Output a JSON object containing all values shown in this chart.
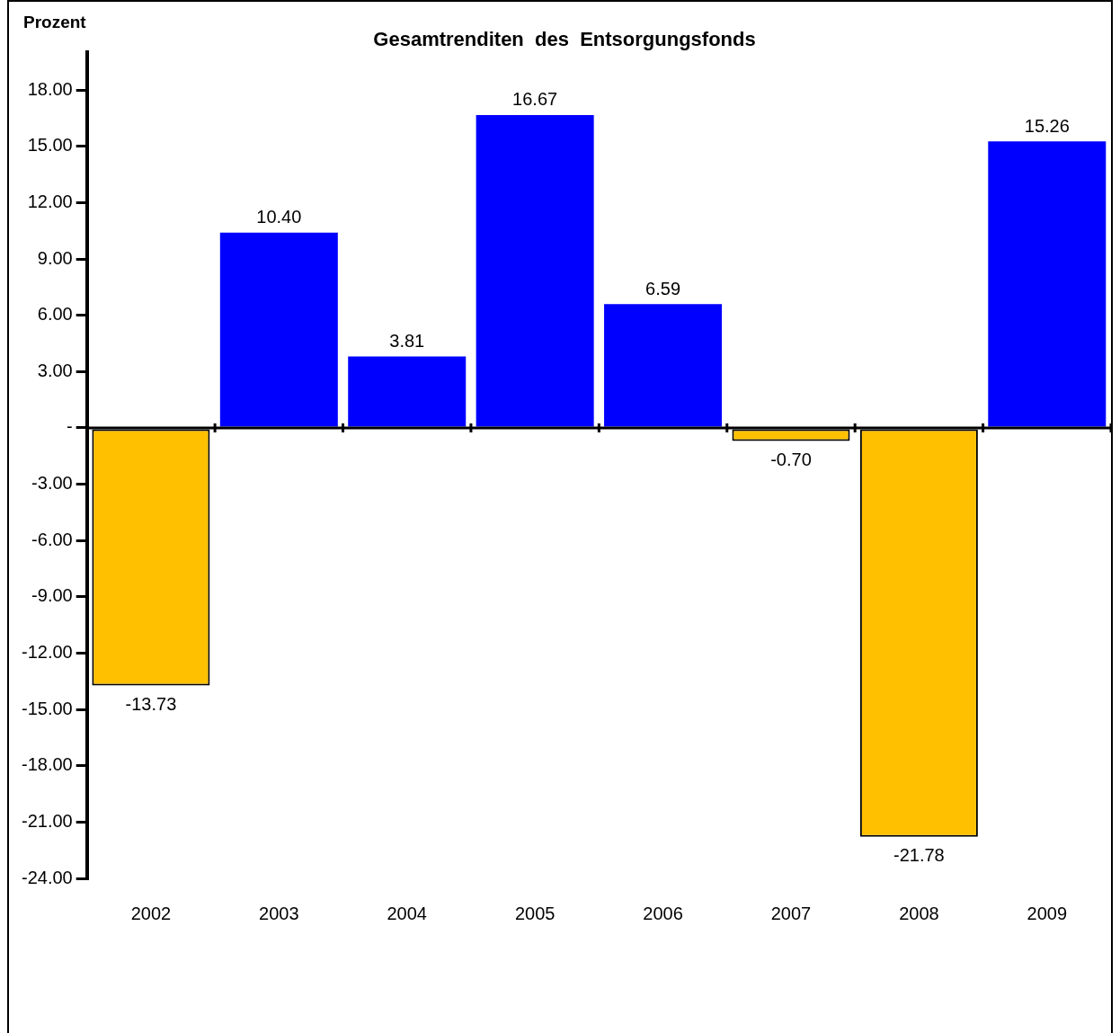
{
  "chart_data": {
    "type": "bar",
    "title": "Gesamtrenditen  des  Entsorgungsfonds",
    "ylabel": "Prozent",
    "categories": [
      "2002",
      "2003",
      "2004",
      "2005",
      "2006",
      "2007",
      "2008",
      "2009"
    ],
    "values": [
      -13.73,
      10.4,
      3.81,
      16.67,
      6.59,
      -0.7,
      -21.78,
      15.26
    ],
    "value_labels": [
      "-13.73",
      "10.40",
      "3.81",
      "16.67",
      "6.59",
      "-0.70",
      "-21.78",
      "15.26"
    ],
    "colors": [
      "#ffc000",
      "#0000ff",
      "#0000ff",
      "#0000ff",
      "#0000ff",
      "#ffc000",
      "#ffc000",
      "#0000ff"
    ],
    "ylim": [
      -24,
      20
    ],
    "yticks": [
      {
        "value": 18,
        "label": "18.00"
      },
      {
        "value": 15,
        "label": "15.00"
      },
      {
        "value": 12,
        "label": "12.00"
      },
      {
        "value": 9,
        "label": "9.00"
      },
      {
        "value": 6,
        "label": "6.00"
      },
      {
        "value": 3,
        "label": "3.00"
      },
      {
        "value": 0,
        "label": "-"
      },
      {
        "value": -3,
        "label": "-3.00"
      },
      {
        "value": -6,
        "label": "-6.00"
      },
      {
        "value": -9,
        "label": "-9.00"
      },
      {
        "value": -12,
        "label": "-12.00"
      },
      {
        "value": -15,
        "label": "-15.00"
      },
      {
        "value": -18,
        "label": "-18.00"
      },
      {
        "value": -21,
        "label": "-21.00"
      },
      {
        "value": -24,
        "label": "-24.00"
      }
    ],
    "legend": false
  }
}
